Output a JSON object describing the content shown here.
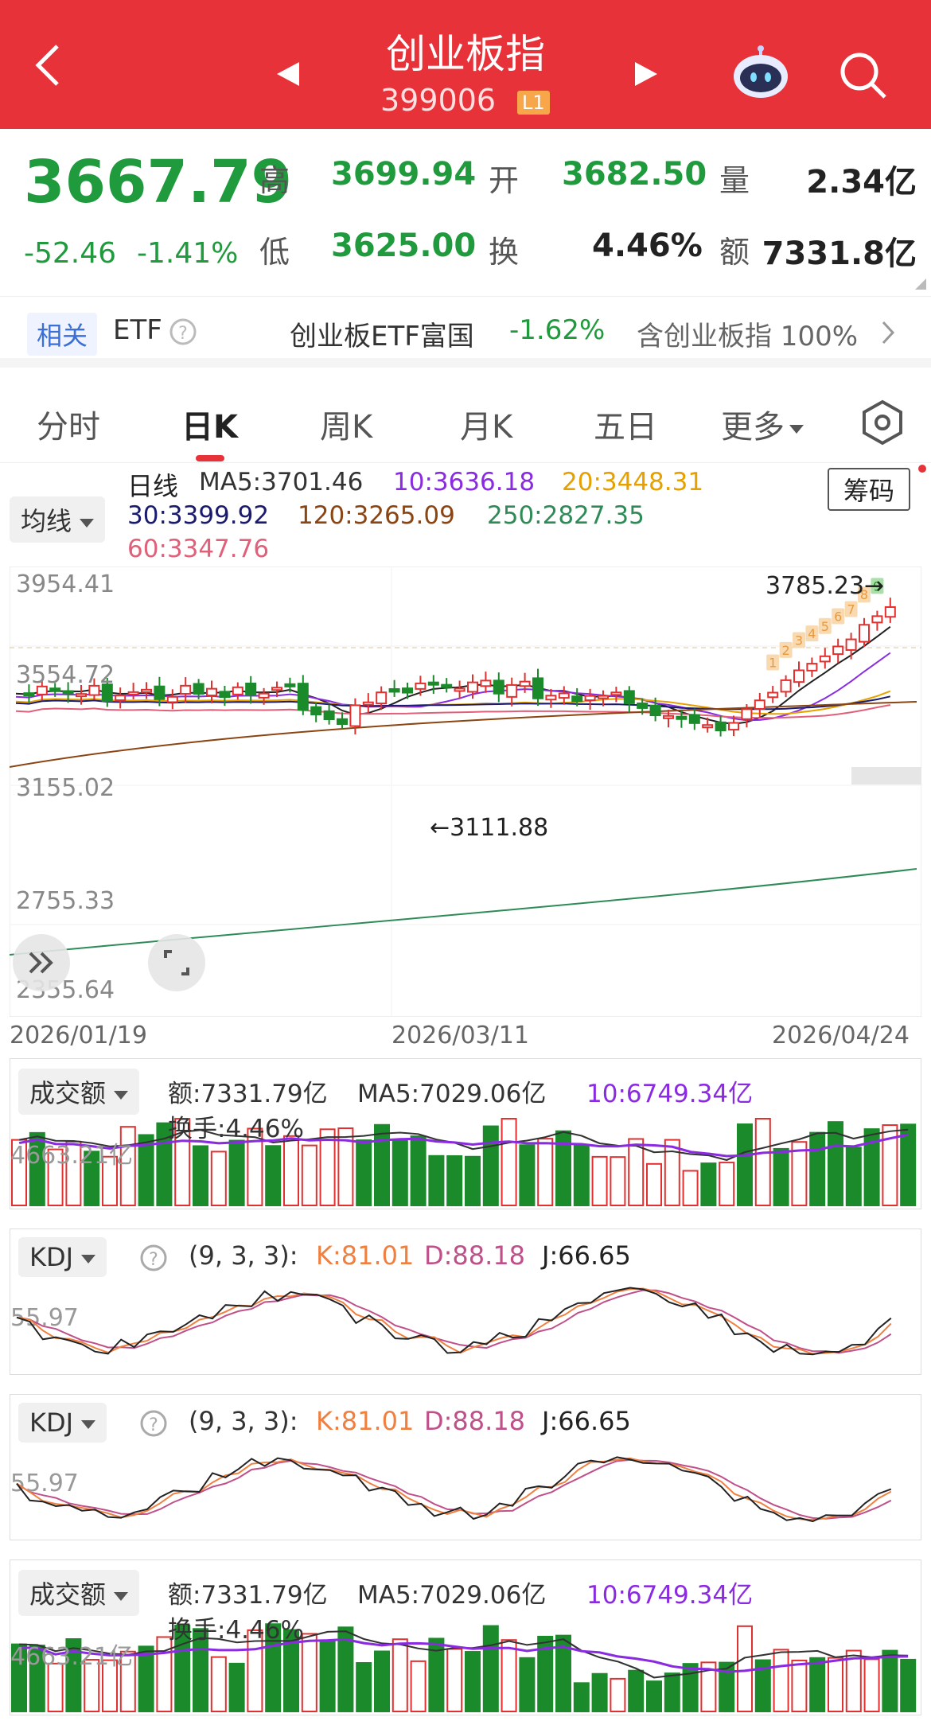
{
  "header": {
    "title": "创业板指",
    "code": "399006",
    "level_badge": "L1",
    "back_icon": "back-arrow-icon",
    "prev_icon": "triangle-left-icon",
    "next_icon": "triangle-right-icon",
    "robot_icon": "robot-assistant-icon",
    "search_icon": "search-icon"
  },
  "quote": {
    "price": "3667.79",
    "change": "-52.46",
    "change_pct": "-1.41%",
    "high_label": "高",
    "high": "3699.94",
    "open_label": "开",
    "open": "3682.50",
    "vol_label": "量",
    "vol": "2.34亿",
    "low_label": "低",
    "low": "3625.00",
    "turnover_label": "换",
    "turnover": "4.46%",
    "amount_label": "额",
    "amount": "7331.8亿"
  },
  "etf": {
    "tag": "相关",
    "label": "ETF",
    "name": "创业板ETF富国",
    "change": "-1.62%",
    "holding": "含创业板指 100%"
  },
  "tabs": [
    "分时",
    "日K",
    "周K",
    "月K",
    "五日",
    "更多"
  ],
  "kline": {
    "ma_dropdown": "均线",
    "legend_title": "日线",
    "ma5": "MA5:3701.46",
    "ma10": "10:3636.18",
    "ma20": "20:3448.31",
    "ma30": "30:3399.92",
    "ma120": "120:3265.09",
    "ma250": "250:2827.35",
    "ma60": "60:3347.76",
    "chips_button": "筹码",
    "y_ticks": [
      "3954.41",
      "3554.72",
      "3155.02",
      "2755.33",
      "2355.64"
    ],
    "x_ticks": [
      "2026/01/19",
      "2026/03/11",
      "2026/04/24"
    ],
    "max_label": "3785.23→",
    "min_label": "←3111.88",
    "td_counts": [
      "1",
      "2",
      "3",
      "4",
      "5",
      "6",
      "7",
      "8",
      "9"
    ],
    "colors": {
      "ma5": "#222222",
      "ma10": "#8a2be2",
      "ma20": "#e6a100",
      "ma30": "#1a1a6e",
      "ma120": "#8b4513",
      "ma250": "#2e8b57",
      "ma60": "#e0607a"
    }
  },
  "volume": {
    "dropdown": "成交额",
    "amount": "额:7331.79亿",
    "ma5": "MA5:7029.06亿",
    "ma10": "10:6749.34亿",
    "turnover": "换手:4.46%",
    "axis_label": "4663.21亿"
  },
  "kdj": {
    "dropdown": "KDJ",
    "params": "(9, 3, 3):",
    "k": "K:81.01",
    "d": "D:88.18",
    "j": "J:66.65",
    "axis_label": "55.97"
  }
}
